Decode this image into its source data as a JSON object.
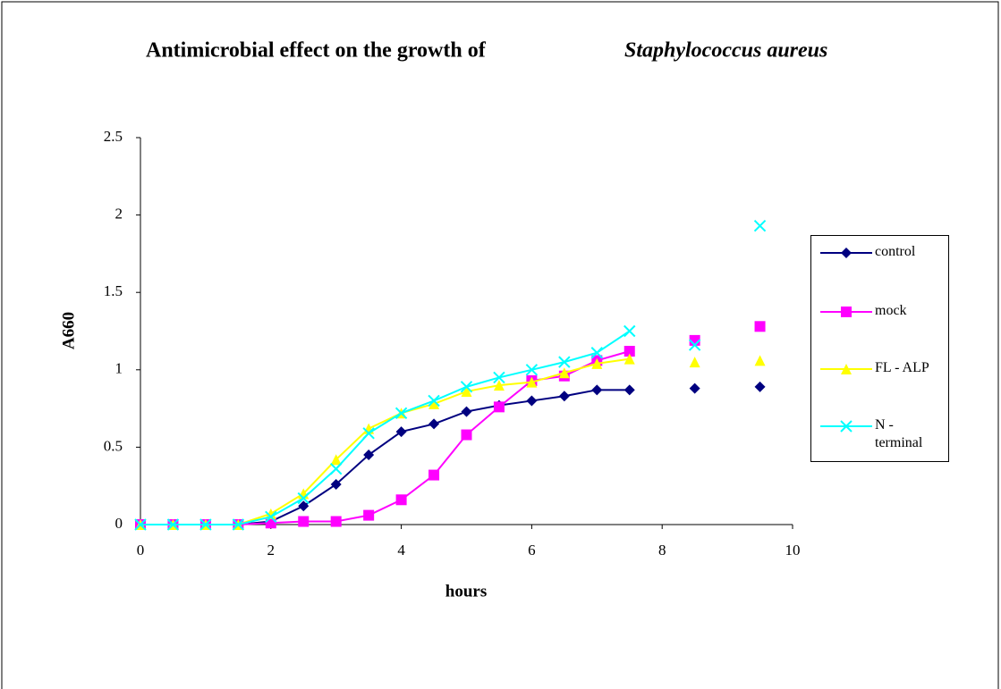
{
  "chart_data": {
    "type": "line",
    "title": "Antimicrobial effect on the growth of",
    "title_italic": "Staphylococcus aureus",
    "xlabel": "hours",
    "ylabel": "A660",
    "x": [
      0,
      0.5,
      1,
      1.5,
      2,
      2.5,
      3,
      3.5,
      4,
      4.5,
      5,
      5.5,
      6,
      6.5,
      7,
      7.5,
      8,
      8.5,
      9,
      9.5
    ],
    "series": [
      {
        "name": "control",
        "color": "#000080",
        "marker": "diamond",
        "values": [
          0,
          0,
          0,
          0,
          0.02,
          0.12,
          0.26,
          0.45,
          0.6,
          0.65,
          0.73,
          0.77,
          0.8,
          0.83,
          0.87,
          0.87,
          null,
          0.88,
          null,
          0.89
        ]
      },
      {
        "name": "mock",
        "color": "#ff00ff",
        "marker": "square",
        "values": [
          0,
          0,
          0,
          0,
          0.01,
          0.02,
          0.02,
          0.06,
          0.16,
          0.32,
          0.58,
          0.76,
          0.93,
          0.96,
          1.06,
          1.12,
          null,
          1.19,
          null,
          1.28
        ]
      },
      {
        "name": "FL - ALP",
        "color": "#ffff00",
        "marker": "triangle",
        "values": [
          0,
          0,
          0,
          0,
          0.07,
          0.2,
          0.42,
          0.62,
          0.72,
          0.78,
          0.86,
          0.9,
          0.92,
          0.98,
          1.04,
          1.07,
          null,
          1.05,
          null,
          1.06
        ]
      },
      {
        "name": "N - terminal",
        "color": "#00ffff",
        "marker": "x",
        "values": [
          0,
          0,
          0,
          0,
          0.05,
          0.17,
          0.36,
          0.59,
          0.72,
          0.8,
          0.89,
          0.95,
          1.0,
          1.05,
          1.11,
          1.25,
          null,
          1.16,
          null,
          1.93
        ]
      }
    ],
    "xlim": [
      0,
      10
    ],
    "xticks": [
      0,
      2,
      4,
      6,
      8,
      10
    ],
    "ylim": [
      0,
      2.5
    ],
    "yticks": [
      0,
      0.5,
      1,
      1.5,
      2,
      2.5
    ],
    "grid": false
  }
}
